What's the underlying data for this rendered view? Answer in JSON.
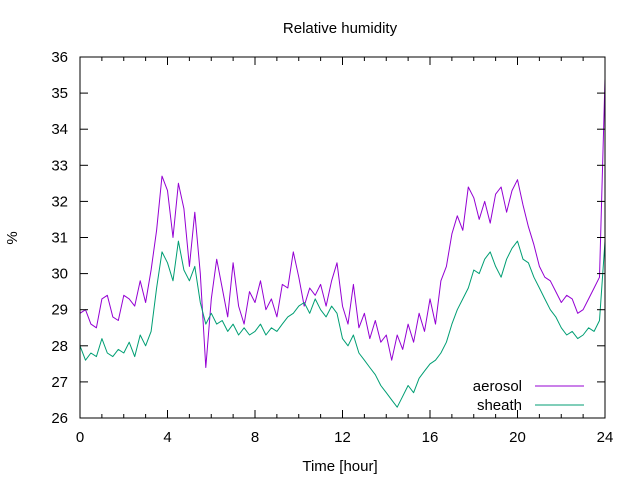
{
  "chart_data": {
    "type": "line",
    "title": "Relative humidity",
    "xlabel": "Time [hour]",
    "ylabel": "%",
    "xlim": [
      0,
      24
    ],
    "ylim": [
      26,
      36
    ],
    "xticks": [
      0,
      4,
      8,
      12,
      16,
      20,
      24
    ],
    "yticks": [
      26,
      27,
      28,
      29,
      30,
      31,
      32,
      33,
      34,
      35,
      36
    ],
    "grid": false,
    "legend_position": "bottom-right",
    "series": [
      {
        "name": "aerosol",
        "color": "#9400d3",
        "points": [
          [
            0,
            28.9
          ],
          [
            0.25,
            29.0
          ],
          [
            0.5,
            28.6
          ],
          [
            0.75,
            28.5
          ],
          [
            1.0,
            29.3
          ],
          [
            1.25,
            29.4
          ],
          [
            1.5,
            28.8
          ],
          [
            1.75,
            28.7
          ],
          [
            2.0,
            29.4
          ],
          [
            2.25,
            29.3
          ],
          [
            2.5,
            29.1
          ],
          [
            2.75,
            29.8
          ],
          [
            3.0,
            29.2
          ],
          [
            3.25,
            30.1
          ],
          [
            3.5,
            31.2
          ],
          [
            3.75,
            32.7
          ],
          [
            4.0,
            32.3
          ],
          [
            4.25,
            31.0
          ],
          [
            4.5,
            32.5
          ],
          [
            4.75,
            31.8
          ],
          [
            5.0,
            30.2
          ],
          [
            5.25,
            31.7
          ],
          [
            5.5,
            30.0
          ],
          [
            5.75,
            27.4
          ],
          [
            6.0,
            29.3
          ],
          [
            6.25,
            30.4
          ],
          [
            6.5,
            29.6
          ],
          [
            6.75,
            28.8
          ],
          [
            7.0,
            30.3
          ],
          [
            7.25,
            29.1
          ],
          [
            7.5,
            28.6
          ],
          [
            7.75,
            29.5
          ],
          [
            8.0,
            29.2
          ],
          [
            8.25,
            29.8
          ],
          [
            8.5,
            29.0
          ],
          [
            8.75,
            29.3
          ],
          [
            9.0,
            28.8
          ],
          [
            9.25,
            29.7
          ],
          [
            9.5,
            29.6
          ],
          [
            9.75,
            30.6
          ],
          [
            10.0,
            29.9
          ],
          [
            10.25,
            29.1
          ],
          [
            10.5,
            29.6
          ],
          [
            10.75,
            29.4
          ],
          [
            11.0,
            29.7
          ],
          [
            11.25,
            29.1
          ],
          [
            11.5,
            29.8
          ],
          [
            11.75,
            30.3
          ],
          [
            12.0,
            29.1
          ],
          [
            12.25,
            28.6
          ],
          [
            12.5,
            29.7
          ],
          [
            12.75,
            28.5
          ],
          [
            13.0,
            28.9
          ],
          [
            13.25,
            28.2
          ],
          [
            13.5,
            28.7
          ],
          [
            13.75,
            28.1
          ],
          [
            14.0,
            28.3
          ],
          [
            14.25,
            27.6
          ],
          [
            14.5,
            28.3
          ],
          [
            14.75,
            27.9
          ],
          [
            15.0,
            28.6
          ],
          [
            15.25,
            28.1
          ],
          [
            15.5,
            28.9
          ],
          [
            15.75,
            28.4
          ],
          [
            16.0,
            29.3
          ],
          [
            16.25,
            28.6
          ],
          [
            16.5,
            29.8
          ],
          [
            16.75,
            30.2
          ],
          [
            17.0,
            31.1
          ],
          [
            17.25,
            31.6
          ],
          [
            17.5,
            31.2
          ],
          [
            17.75,
            32.4
          ],
          [
            18.0,
            32.1
          ],
          [
            18.25,
            31.5
          ],
          [
            18.5,
            32.0
          ],
          [
            18.75,
            31.4
          ],
          [
            19.0,
            32.2
          ],
          [
            19.25,
            32.4
          ],
          [
            19.5,
            31.7
          ],
          [
            19.75,
            32.3
          ],
          [
            20.0,
            32.6
          ],
          [
            20.25,
            31.9
          ],
          [
            20.5,
            31.3
          ],
          [
            20.75,
            30.8
          ],
          [
            21.0,
            30.2
          ],
          [
            21.25,
            29.9
          ],
          [
            21.5,
            29.8
          ],
          [
            21.75,
            29.5
          ],
          [
            22.0,
            29.2
          ],
          [
            22.25,
            29.4
          ],
          [
            22.5,
            29.3
          ],
          [
            22.75,
            28.9
          ],
          [
            23.0,
            29.0
          ],
          [
            23.25,
            29.3
          ],
          [
            23.5,
            29.6
          ],
          [
            23.75,
            29.9
          ],
          [
            24.0,
            35.4
          ]
        ]
      },
      {
        "name": "sheath",
        "color": "#009e73",
        "points": [
          [
            0,
            28.0
          ],
          [
            0.25,
            27.6
          ],
          [
            0.5,
            27.8
          ],
          [
            0.75,
            27.7
          ],
          [
            1.0,
            28.2
          ],
          [
            1.25,
            27.8
          ],
          [
            1.5,
            27.7
          ],
          [
            1.75,
            27.9
          ],
          [
            2.0,
            27.8
          ],
          [
            2.25,
            28.1
          ],
          [
            2.5,
            27.7
          ],
          [
            2.75,
            28.3
          ],
          [
            3.0,
            28.0
          ],
          [
            3.25,
            28.4
          ],
          [
            3.5,
            29.6
          ],
          [
            3.75,
            30.6
          ],
          [
            4.0,
            30.3
          ],
          [
            4.25,
            29.8
          ],
          [
            4.5,
            30.9
          ],
          [
            4.75,
            30.1
          ],
          [
            5.0,
            29.8
          ],
          [
            5.25,
            30.2
          ],
          [
            5.5,
            29.2
          ],
          [
            5.75,
            28.6
          ],
          [
            6.0,
            28.9
          ],
          [
            6.25,
            28.6
          ],
          [
            6.5,
            28.7
          ],
          [
            6.75,
            28.4
          ],
          [
            7.0,
            28.6
          ],
          [
            7.25,
            28.3
          ],
          [
            7.5,
            28.5
          ],
          [
            7.75,
            28.3
          ],
          [
            8.0,
            28.4
          ],
          [
            8.25,
            28.6
          ],
          [
            8.5,
            28.3
          ],
          [
            8.75,
            28.5
          ],
          [
            9.0,
            28.4
          ],
          [
            9.25,
            28.6
          ],
          [
            9.5,
            28.8
          ],
          [
            9.75,
            28.9
          ],
          [
            10.0,
            29.1
          ],
          [
            10.25,
            29.2
          ],
          [
            10.5,
            28.9
          ],
          [
            10.75,
            29.3
          ],
          [
            11.0,
            29.0
          ],
          [
            11.25,
            28.8
          ],
          [
            11.5,
            29.1
          ],
          [
            11.75,
            28.9
          ],
          [
            12.0,
            28.2
          ],
          [
            12.25,
            28.0
          ],
          [
            12.5,
            28.3
          ],
          [
            12.75,
            27.8
          ],
          [
            13.0,
            27.6
          ],
          [
            13.25,
            27.4
          ],
          [
            13.5,
            27.2
          ],
          [
            13.75,
            26.9
          ],
          [
            14.0,
            26.7
          ],
          [
            14.25,
            26.5
          ],
          [
            14.5,
            26.3
          ],
          [
            14.75,
            26.6
          ],
          [
            15.0,
            26.9
          ],
          [
            15.25,
            26.7
          ],
          [
            15.5,
            27.1
          ],
          [
            15.75,
            27.3
          ],
          [
            16.0,
            27.5
          ],
          [
            16.25,
            27.6
          ],
          [
            16.5,
            27.8
          ],
          [
            16.75,
            28.1
          ],
          [
            17.0,
            28.6
          ],
          [
            17.25,
            29.0
          ],
          [
            17.5,
            29.3
          ],
          [
            17.75,
            29.6
          ],
          [
            18.0,
            30.1
          ],
          [
            18.25,
            30.0
          ],
          [
            18.5,
            30.4
          ],
          [
            18.75,
            30.6
          ],
          [
            19.0,
            30.2
          ],
          [
            19.25,
            29.9
          ],
          [
            19.5,
            30.4
          ],
          [
            19.75,
            30.7
          ],
          [
            20.0,
            30.9
          ],
          [
            20.25,
            30.4
          ],
          [
            20.5,
            30.3
          ],
          [
            20.75,
            29.9
          ],
          [
            21.0,
            29.6
          ],
          [
            21.25,
            29.3
          ],
          [
            21.5,
            29.0
          ],
          [
            21.75,
            28.8
          ],
          [
            22.0,
            28.5
          ],
          [
            22.25,
            28.3
          ],
          [
            22.5,
            28.4
          ],
          [
            22.75,
            28.2
          ],
          [
            23.0,
            28.3
          ],
          [
            23.25,
            28.5
          ],
          [
            23.5,
            28.4
          ],
          [
            23.75,
            28.7
          ],
          [
            24.0,
            30.9
          ]
        ]
      }
    ]
  }
}
